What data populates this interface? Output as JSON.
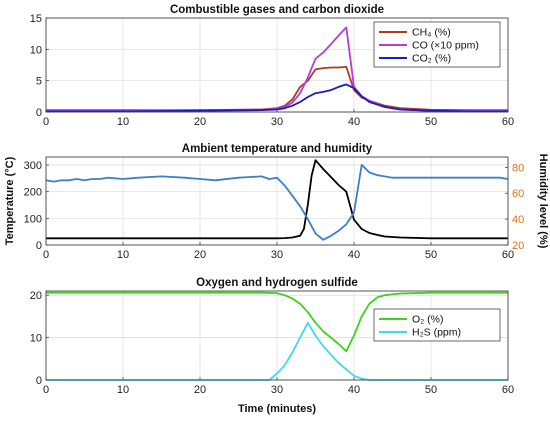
{
  "figure": {
    "xlabel": "Time (minutes)"
  },
  "chart_data": [
    {
      "type": "line",
      "title": "Combustible gases and carbon dioxide",
      "xlabel": "",
      "ylabel": "",
      "xlim": [
        0,
        60
      ],
      "ylim": [
        0,
        15
      ],
      "xticks": [
        0,
        10,
        20,
        30,
        40,
        50,
        60
      ],
      "yticks": [
        0,
        5,
        10,
        15
      ],
      "grid": true,
      "legend": "top-right",
      "series": [
        {
          "name": "CH₄ (%)",
          "color": "#b03a1f",
          "x": [
            0,
            10,
            20,
            28,
            30,
            31,
            32,
            33,
            34,
            35,
            36,
            37,
            38,
            39,
            40,
            41,
            42,
            44,
            46,
            50,
            55,
            60
          ],
          "y": [
            0.3,
            0.3,
            0.3,
            0.4,
            0.6,
            1.0,
            2.0,
            4.0,
            5.0,
            6.8,
            7.0,
            7.1,
            7.1,
            7.2,
            3.5,
            2.3,
            1.8,
            1.0,
            0.6,
            0.35,
            0.3,
            0.3
          ]
        },
        {
          "name": "CO (×10 ppm)",
          "color": "#b23ee0",
          "x": [
            0,
            10,
            20,
            28,
            30,
            31,
            32,
            33,
            34,
            35,
            36,
            37,
            38,
            39,
            40,
            41,
            42,
            44,
            46,
            50,
            55,
            60
          ],
          "y": [
            0.2,
            0.2,
            0.3,
            0.3,
            0.5,
            0.8,
            1.5,
            3.0,
            5.5,
            8.5,
            9.5,
            10.8,
            12.2,
            13.5,
            4.0,
            2.5,
            1.8,
            0.8,
            0.4,
            0.2,
            0.2,
            0.2
          ]
        },
        {
          "name": "CO₂ (%)",
          "color": "#1a1ac8",
          "x": [
            0,
            10,
            20,
            28,
            30,
            31,
            32,
            33,
            34,
            35,
            36,
            37,
            38,
            39,
            40,
            41,
            42,
            44,
            46,
            50,
            55,
            60
          ],
          "y": [
            0.1,
            0.1,
            0.2,
            0.3,
            0.4,
            0.6,
            1.0,
            1.6,
            2.4,
            3.0,
            3.2,
            3.5,
            4.0,
            4.4,
            3.8,
            2.5,
            1.6,
            0.8,
            0.4,
            0.2,
            0.1,
            0.1
          ]
        }
      ]
    },
    {
      "type": "line",
      "title": "Ambient temperature and humidity",
      "xlabel": "",
      "ylabel": "Temperature (°C)",
      "ylabel_right": "Humidity level (%)",
      "xlim": [
        0,
        60
      ],
      "ylim": [
        0,
        330
      ],
      "ylim_right": [
        20,
        88
      ],
      "xticks": [
        0,
        10,
        20,
        30,
        40,
        50,
        60
      ],
      "yticks": [
        0,
        100,
        200,
        300
      ],
      "yticks_right": [
        20,
        40,
        60,
        80
      ],
      "grid": true,
      "series": [
        {
          "axis": "left",
          "color": "#000000",
          "x": [
            0,
            10,
            20,
            28,
            30,
            31,
            32,
            33,
            33.5,
            34,
            34.5,
            35,
            36,
            37,
            38,
            39,
            40,
            41,
            42,
            43,
            44,
            46,
            50,
            55,
            60
          ],
          "y": [
            25,
            25,
            25,
            25,
            25,
            26,
            28,
            35,
            60,
            150,
            260,
            318,
            285,
            255,
            225,
            200,
            95,
            60,
            45,
            38,
            32,
            28,
            25,
            25,
            25
          ]
        },
        {
          "axis": "right",
          "color": "#3f7fc4",
          "x": [
            0,
            1,
            2,
            3,
            4,
            5,
            6,
            7,
            8,
            10,
            12,
            15,
            18,
            20,
            22,
            25,
            28,
            29,
            30,
            31,
            32,
            33,
            34,
            35,
            36,
            37,
            38,
            39,
            40,
            41,
            42,
            43,
            45,
            50,
            55,
            59,
            60
          ],
          "y": [
            70,
            69,
            70,
            70,
            71,
            70,
            71,
            71,
            72,
            71,
            72,
            73,
            72,
            71,
            70,
            72,
            73,
            71,
            72,
            66,
            58,
            50,
            40,
            29,
            24,
            27,
            31,
            36,
            45,
            82,
            76,
            74,
            72,
            72,
            72,
            72,
            71
          ]
        }
      ]
    },
    {
      "type": "line",
      "title": "Oxygen and hydrogen sulfide",
      "xlabel": "Time (minutes)",
      "ylabel": "",
      "xlim": [
        0,
        60
      ],
      "ylim": [
        0,
        21
      ],
      "xticks": [
        0,
        10,
        20,
        30,
        40,
        50,
        60
      ],
      "yticks": [
        0,
        10,
        20
      ],
      "grid": true,
      "legend": "right",
      "series": [
        {
          "name": "O₂ (%)",
          "color": "#3ed11e",
          "x": [
            0,
            10,
            20,
            28,
            30,
            31,
            32,
            33,
            34,
            35,
            36,
            37,
            38,
            39,
            40,
            41,
            42,
            43,
            44,
            46,
            50,
            55,
            60
          ],
          "y": [
            20.6,
            20.6,
            20.6,
            20.6,
            20.5,
            20.0,
            19.2,
            18.0,
            16.0,
            13.5,
            11.5,
            10.0,
            8.5,
            6.8,
            10.5,
            15.0,
            18.0,
            19.5,
            20.0,
            20.4,
            20.6,
            20.6,
            20.6
          ]
        },
        {
          "name": "H₂S (ppm)",
          "color": "#3fd8ee",
          "x": [
            0,
            10,
            20,
            28,
            29,
            30,
            31,
            32,
            33,
            34,
            35,
            36,
            37,
            38,
            39,
            40,
            41,
            42,
            44,
            50,
            55,
            60
          ],
          "y": [
            0,
            0,
            0,
            0,
            0,
            1.5,
            3.5,
            6.5,
            10.0,
            13.5,
            10.5,
            8.0,
            6.0,
            4.0,
            2.5,
            1.0,
            0.3,
            0,
            0,
            0,
            0,
            0
          ]
        }
      ]
    }
  ]
}
